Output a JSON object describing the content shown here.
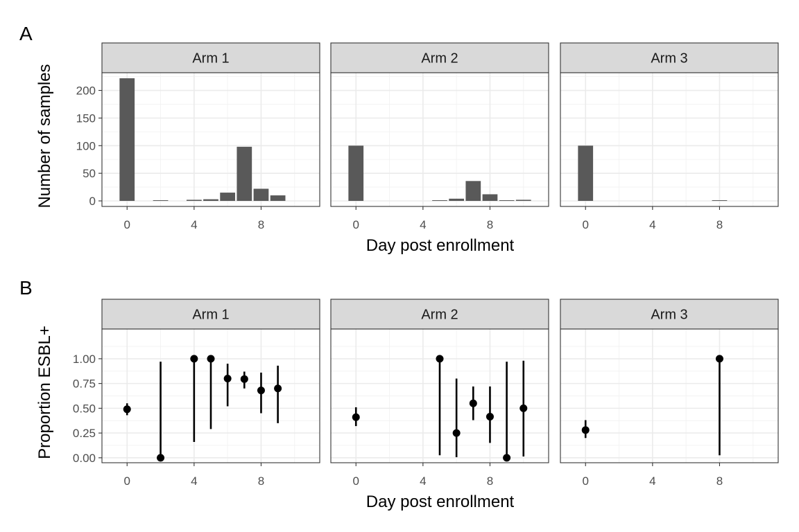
{
  "chart_data": [
    {
      "tag": "A",
      "type": "bar",
      "xlabel": "Day post enrollment",
      "ylabel": "Number of samples",
      "xlim": [
        -1.5,
        11.5
      ],
      "ylim": [
        -10,
        232
      ],
      "x_ticks": [
        0,
        4,
        8
      ],
      "y_ticks": [
        0,
        50,
        100,
        150,
        200
      ],
      "facets": [
        {
          "label": "Arm 1",
          "x": [
            0,
            2,
            4,
            5,
            6,
            7,
            8,
            9
          ],
          "values": [
            222,
            1,
            2,
            3,
            15,
            98,
            22,
            10
          ]
        },
        {
          "label": "Arm 2",
          "x": [
            0,
            5,
            6,
            7,
            8,
            9,
            10
          ],
          "values": [
            100,
            1,
            4,
            36,
            12,
            1,
            2
          ]
        },
        {
          "label": "Arm 3",
          "x": [
            0,
            8
          ],
          "values": [
            100,
            1
          ]
        }
      ]
    },
    {
      "tag": "B",
      "type": "scatter",
      "xlabel": "Day post enrollment",
      "ylabel": "Proportion ESBL+",
      "xlim": [
        -1.5,
        11.5
      ],
      "ylim": [
        -0.05,
        1.3
      ],
      "x_ticks": [
        0,
        4,
        8
      ],
      "y_ticks": [
        0,
        0.25,
        0.5,
        0.75,
        1
      ],
      "y_tick_labels": [
        "0.00",
        "0.25",
        "0.50",
        "0.75",
        "1.00"
      ],
      "facets": [
        {
          "label": "Arm 1",
          "x": [
            0,
            2,
            4,
            5,
            6,
            7,
            8,
            9
          ],
          "values": [
            0.49,
            0.0,
            1.0,
            1.0,
            0.8,
            0.795,
            0.68,
            0.7
          ],
          "lower": [
            0.43,
            0.0,
            0.16,
            0.29,
            0.52,
            0.7,
            0.45,
            0.35
          ],
          "upper": [
            0.55,
            0.97,
            1.0,
            1.0,
            0.95,
            0.87,
            0.86,
            0.93
          ]
        },
        {
          "label": "Arm 2",
          "x": [
            0,
            5,
            6,
            7,
            8,
            9,
            10
          ],
          "values": [
            0.41,
            1.0,
            0.25,
            0.55,
            0.415,
            0.0,
            0.5
          ],
          "lower": [
            0.32,
            0.025,
            0.006,
            0.38,
            0.15,
            0.0,
            0.013
          ],
          "upper": [
            0.51,
            1.0,
            0.8,
            0.72,
            0.72,
            0.97,
            0.98
          ]
        },
        {
          "label": "Arm 3",
          "x": [
            0,
            8
          ],
          "values": [
            0.28,
            1.0
          ],
          "lower": [
            0.2,
            0.025
          ],
          "upper": [
            0.38,
            1.0
          ]
        }
      ]
    }
  ]
}
